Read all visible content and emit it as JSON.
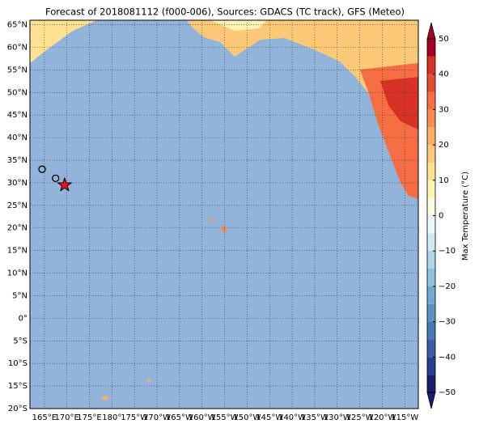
{
  "map": {
    "title": "Forecast of 2018081112 (f000-006), Sources: GDACS (TC track), GFS (Meteo)",
    "xlim": [
      161.8,
      248
    ],
    "ylim": [
      -20,
      66
    ],
    "xticks": [
      {
        "value": 165,
        "label": "165°E"
      },
      {
        "value": 170,
        "label": "170°E"
      },
      {
        "value": 175,
        "label": "175°E"
      },
      {
        "value": 180,
        "label": "180°"
      },
      {
        "value": 185,
        "label": "175°W"
      },
      {
        "value": 190,
        "label": "170°W"
      },
      {
        "value": 195,
        "label": "165°W"
      },
      {
        "value": 200,
        "label": "160°W"
      },
      {
        "value": 205,
        "label": "155°W"
      },
      {
        "value": 210,
        "label": "150°W"
      },
      {
        "value": 215,
        "label": "145°W"
      },
      {
        "value": 220,
        "label": "140°W"
      },
      {
        "value": 225,
        "label": "135°W"
      },
      {
        "value": 230,
        "label": "130°W"
      },
      {
        "value": 235,
        "label": "125°W"
      },
      {
        "value": 240,
        "label": "120°W"
      },
      {
        "value": 245,
        "label": "115°W"
      }
    ],
    "yticks": [
      {
        "value": 65,
        "label": "65°N"
      },
      {
        "value": 60,
        "label": "60°N"
      },
      {
        "value": 55,
        "label": "55°N"
      },
      {
        "value": 50,
        "label": "50°N"
      },
      {
        "value": 45,
        "label": "45°N"
      },
      {
        "value": 40,
        "label": "40°N"
      },
      {
        "value": 35,
        "label": "35°N"
      },
      {
        "value": 30,
        "label": "30°N"
      },
      {
        "value": 25,
        "label": "25°N"
      },
      {
        "value": 20,
        "label": "20°N"
      },
      {
        "value": 15,
        "label": "15°N"
      },
      {
        "value": 10,
        "label": "10°N"
      },
      {
        "value": 5,
        "label": "5°N"
      },
      {
        "value": 0,
        "label": "0°"
      },
      {
        "value": -5,
        "label": "5°S"
      },
      {
        "value": -10,
        "label": "10°S"
      },
      {
        "value": -15,
        "label": "15°S"
      },
      {
        "value": -20,
        "label": "20°S"
      }
    ],
    "grid": true,
    "track": [
      {
        "lon": 164.5,
        "lat": 33
      },
      {
        "lon": 167.5,
        "lat": 31
      },
      {
        "lon": 169.5,
        "lat": 29.5
      }
    ]
  },
  "colorbar": {
    "label": "Max Temperature (°C)",
    "lim": [
      -50,
      50
    ],
    "ticks": [
      {
        "value": -50,
        "label": "−50"
      },
      {
        "value": -40,
        "label": "−40"
      },
      {
        "value": -30,
        "label": "−30"
      },
      {
        "value": -20,
        "label": "−20"
      },
      {
        "value": -10,
        "label": "−10"
      },
      0,
      10,
      20,
      30,
      40,
      50
    ],
    "colors": [
      "#1a1f6b",
      "#2b3c94",
      "#3c5ba8",
      "#4a78b5",
      "#5a92c4",
      "#73aad2",
      "#8fc0dd",
      "#afd6e8",
      "#cfe8f2",
      "#eaf6f8",
      "#fbfde0",
      "#fff3b5",
      "#fee090",
      "#fdc878",
      "#fdae61",
      "#f88d52",
      "#f46d43",
      "#e34e33",
      "#d73027",
      "#a50026"
    ]
  }
}
